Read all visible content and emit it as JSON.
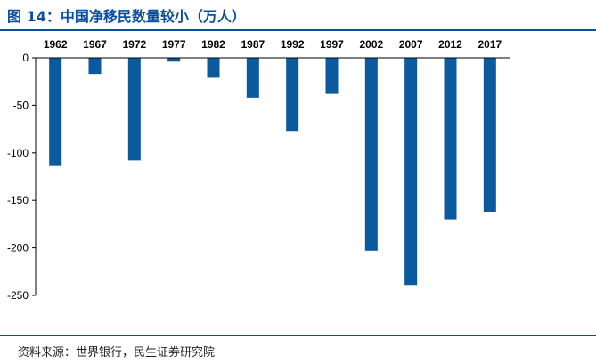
{
  "title": "图 14：中国净移民数量较小（万人）",
  "source": "资料来源：世界银行，民生证券研究院",
  "colors": {
    "accent": "#0b4f9c",
    "bar": "#0b5a9e"
  },
  "chart_data": {
    "type": "bar",
    "title": "中国净移民数量较小（万人）",
    "categories": [
      "1962",
      "1967",
      "1972",
      "1977",
      "1982",
      "1987",
      "1992",
      "1997",
      "2002",
      "2007",
      "2012",
      "2017"
    ],
    "values": [
      -113,
      -17,
      -108,
      -4,
      -21,
      -42,
      -77,
      -38,
      -203,
      -239,
      -170,
      -162
    ],
    "ylim": [
      -250,
      0
    ],
    "yticks": [
      0,
      -50,
      -100,
      -150,
      -200,
      -250
    ],
    "ytick_labels": [
      "0",
      "-50",
      "-100",
      "-150",
      "-200",
      "-250"
    ],
    "xlabel": "",
    "ylabel": "",
    "category_axis_position": "top",
    "grid": false,
    "legend": "none"
  }
}
